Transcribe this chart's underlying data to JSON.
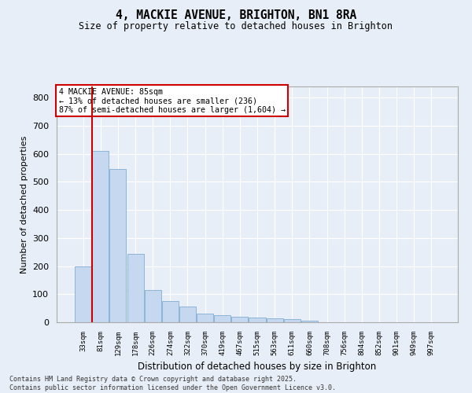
{
  "title": "4, MACKIE AVENUE, BRIGHTON, BN1 8RA",
  "subtitle": "Size of property relative to detached houses in Brighton",
  "xlabel": "Distribution of detached houses by size in Brighton",
  "ylabel": "Number of detached properties",
  "bar_color": "#c5d8f0",
  "bar_edge_color": "#8ab4d8",
  "vline_color": "#cc0000",
  "vline_x_index": 1,
  "annotation_text": "4 MACKIE AVENUE: 85sqm\n← 13% of detached houses are smaller (236)\n87% of semi-detached houses are larger (1,604) →",
  "annotation_box_color": "#ffffff",
  "annotation_box_edge": "#cc0000",
  "categories": [
    "33sqm",
    "81sqm",
    "129sqm",
    "178sqm",
    "226sqm",
    "274sqm",
    "322sqm",
    "370sqm",
    "419sqm",
    "467sqm",
    "515sqm",
    "563sqm",
    "611sqm",
    "660sqm",
    "708sqm",
    "756sqm",
    "804sqm",
    "852sqm",
    "901sqm",
    "949sqm",
    "997sqm"
  ],
  "values": [
    200,
    610,
    545,
    245,
    115,
    75,
    55,
    30,
    25,
    20,
    18,
    15,
    10,
    5,
    0,
    0,
    0,
    0,
    0,
    0,
    0
  ],
  "ylim": [
    0,
    840
  ],
  "yticks": [
    0,
    100,
    200,
    300,
    400,
    500,
    600,
    700,
    800
  ],
  "background_color": "#e8eef7",
  "grid_color": "#ffffff",
  "footer_text": "Contains HM Land Registry data © Crown copyright and database right 2025.\nContains public sector information licensed under the Open Government Licence v3.0.",
  "figsize": [
    6.0,
    5.0
  ],
  "dpi": 100
}
